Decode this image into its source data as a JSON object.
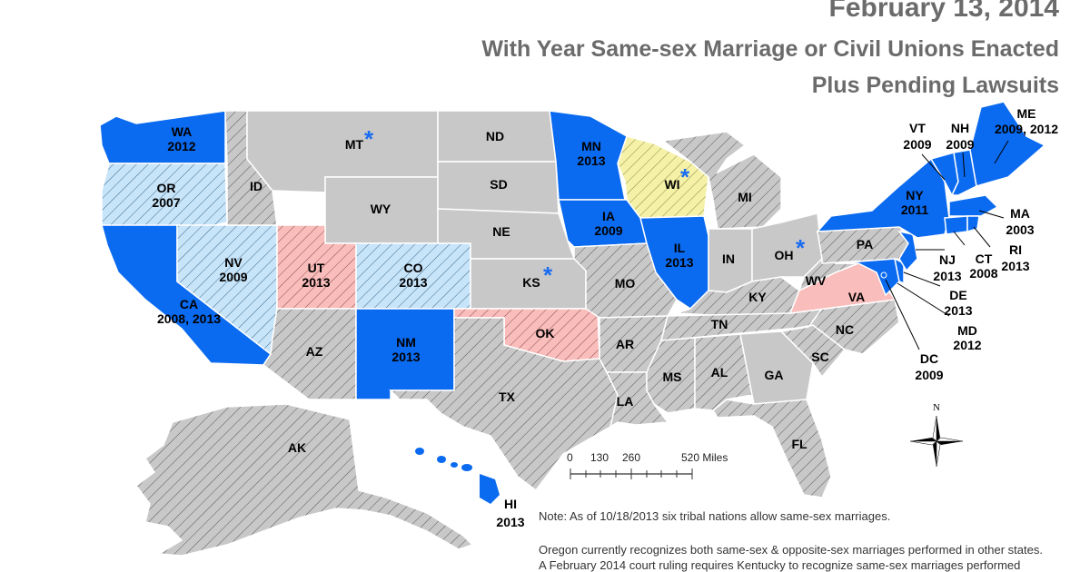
{
  "title": {
    "date": "February 13, 2014",
    "line1": "With Year Same-sex Marriage or Civil Unions Enacted",
    "line2": "Plus Pending Lawsuits"
  },
  "colors": {
    "marriage": "#0a6af0",
    "civil_union": "#c8e4f8",
    "ban_lawsuit": "#c8c8c8",
    "partial_lawsuit": "#f9bdbb",
    "domestic_partnership": "#f5f2a8",
    "pending_star": "#1a6cf0"
  },
  "states": {
    "WA": {
      "abbr": "WA",
      "year": "2012"
    },
    "OR": {
      "abbr": "OR",
      "year": "2007"
    },
    "CA": {
      "abbr": "CA",
      "year": "2008, 2013"
    },
    "NV": {
      "abbr": "NV",
      "year": "2009"
    },
    "ID": {
      "abbr": "ID"
    },
    "MT": {
      "abbr": "MT"
    },
    "WY": {
      "abbr": "WY"
    },
    "UT": {
      "abbr": "UT",
      "year": "2013"
    },
    "CO": {
      "abbr": "CO",
      "year": "2013"
    },
    "AZ": {
      "abbr": "AZ"
    },
    "NM": {
      "abbr": "NM",
      "year": "2013"
    },
    "ND": {
      "abbr": "ND"
    },
    "SD": {
      "abbr": "SD"
    },
    "NE": {
      "abbr": "NE"
    },
    "KS": {
      "abbr": "KS"
    },
    "OK": {
      "abbr": "OK"
    },
    "TX": {
      "abbr": "TX"
    },
    "MN": {
      "abbr": "MN",
      "year": "2013"
    },
    "IA": {
      "abbr": "IA",
      "year": "2009"
    },
    "MO": {
      "abbr": "MO"
    },
    "AR": {
      "abbr": "AR"
    },
    "LA": {
      "abbr": "LA"
    },
    "WI": {
      "abbr": "WI"
    },
    "IL": {
      "abbr": "IL",
      "year": "2013"
    },
    "MI": {
      "abbr": "MI"
    },
    "IN": {
      "abbr": "IN"
    },
    "OH": {
      "abbr": "OH"
    },
    "KY": {
      "abbr": "KY"
    },
    "TN": {
      "abbr": "TN"
    },
    "MS": {
      "abbr": "MS"
    },
    "AL": {
      "abbr": "AL"
    },
    "GA": {
      "abbr": "GA"
    },
    "FL": {
      "abbr": "FL"
    },
    "SC": {
      "abbr": "SC"
    },
    "NC": {
      "abbr": "NC"
    },
    "VA": {
      "abbr": "VA"
    },
    "WV": {
      "abbr": "WV"
    },
    "PA": {
      "abbr": "PA"
    },
    "NY": {
      "abbr": "NY",
      "year": "2011"
    },
    "VT": {
      "abbr": "VT",
      "year": "2009"
    },
    "NH": {
      "abbr": "NH",
      "year": "2009"
    },
    "ME": {
      "abbr": "ME",
      "year": "2009, 2012"
    },
    "MA": {
      "abbr": "MA",
      "year": "2003"
    },
    "CT": {
      "abbr": "CT",
      "year": "2008"
    },
    "RI": {
      "abbr": "RI",
      "year": "2013"
    },
    "NJ": {
      "abbr": "NJ",
      "year": "2013"
    },
    "DE": {
      "abbr": "DE",
      "year": "2013"
    },
    "MD": {
      "abbr": "MD",
      "year": "2012"
    },
    "DC": {
      "abbr": "DC",
      "year": "2009"
    },
    "AK": {
      "abbr": "AK"
    },
    "HI": {
      "abbr": "HI",
      "year": "2013"
    }
  },
  "pending_marker": "*",
  "scale": {
    "ticks": [
      "0",
      "130",
      "260",
      "520 Miles"
    ]
  },
  "compass": {
    "label": "N",
    "icon": "compass-rose-icon"
  },
  "notes": {
    "note1": "Note:  As of 10/18/2013 six tribal nations allow same-sex marriages.",
    "note2": "Oregon currently recognizes both same-sex & opposite-sex marriages performed in other states.",
    "note3": "A February 2014 court ruling requires Kentucky to recognize same-sex marriages performed"
  }
}
